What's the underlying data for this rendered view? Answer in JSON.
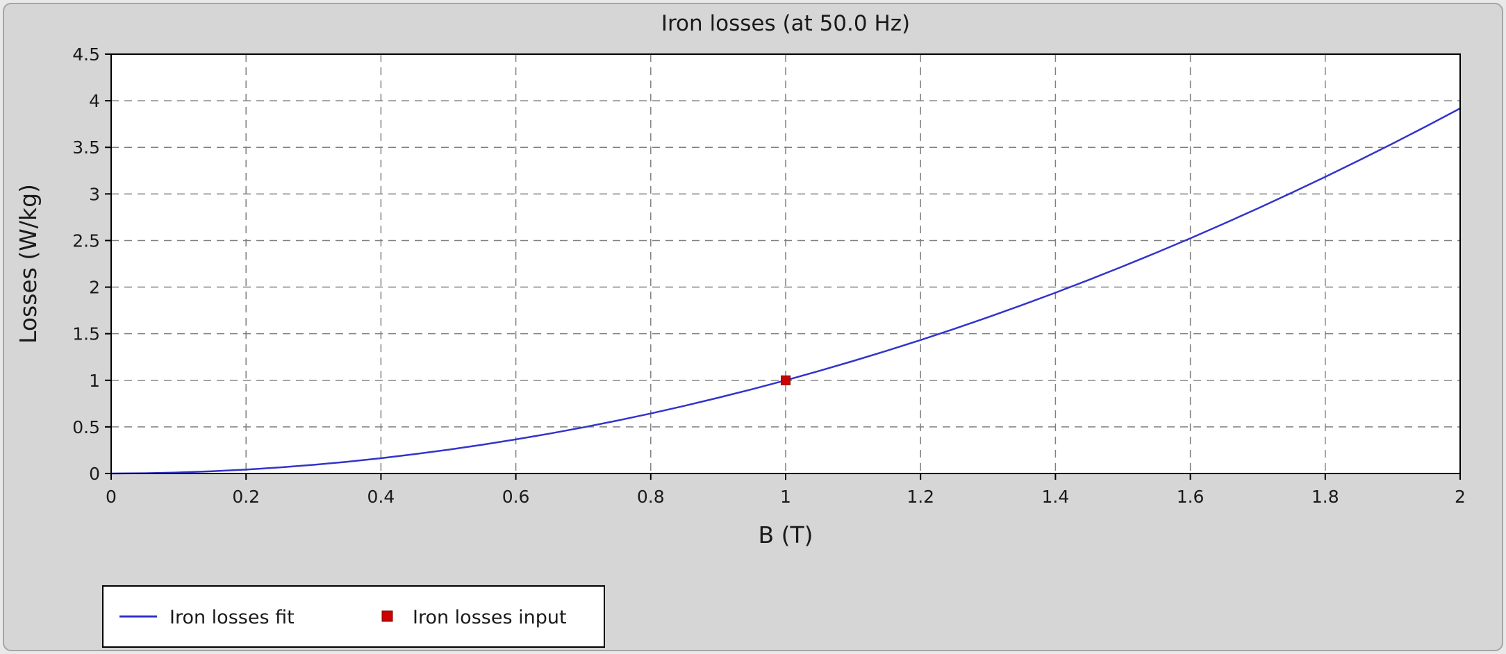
{
  "window": {
    "background_color": "#d6d6d6"
  },
  "chart_data": {
    "type": "line",
    "title": "Iron losses (at 50.0 Hz)",
    "xlabel": "B (T)",
    "ylabel": "Losses (W/kg)",
    "xlim": [
      0,
      2
    ],
    "ylim": [
      0,
      4.5
    ],
    "x_ticks": [
      0,
      0.2,
      0.4,
      0.6,
      0.8,
      1,
      1.2,
      1.4,
      1.6,
      1.8,
      2
    ],
    "y_ticks": [
      0,
      0.5,
      1,
      1.5,
      2,
      2.5,
      3,
      3.5,
      4,
      4.5
    ],
    "grid": true,
    "grid_style": "dashed",
    "grid_color": "#808080",
    "legend_position": "bottom-left",
    "series": [
      {
        "name": "Iron losses fit",
        "type": "line",
        "color": "#3333cc",
        "x": [
          0,
          0.05,
          0.1,
          0.15,
          0.2,
          0.25,
          0.3,
          0.35,
          0.4,
          0.45,
          0.5,
          0.55,
          0.6,
          0.65,
          0.7,
          0.75,
          0.8,
          0.85,
          0.9,
          0.95,
          1,
          1.05,
          1.1,
          1.15,
          1.2,
          1.25,
          1.3,
          1.35,
          1.4,
          1.45,
          1.5,
          1.55,
          1.6,
          1.65,
          1.7,
          1.75,
          1.8,
          1.85,
          1.9,
          1.95,
          2
        ],
        "y": [
          0,
          0.003,
          0.011,
          0.024,
          0.042,
          0.065,
          0.093,
          0.126,
          0.164,
          0.208,
          0.255,
          0.308,
          0.366,
          0.428,
          0.495,
          0.567,
          0.644,
          0.726,
          0.813,
          0.904,
          1,
          1.101,
          1.207,
          1.317,
          1.432,
          1.552,
          1.677,
          1.806,
          1.94,
          2.079,
          2.223,
          2.371,
          2.524,
          2.682,
          2.844,
          3.012,
          3.183,
          3.36,
          3.541,
          3.727,
          3.918
        ]
      },
      {
        "name": "Iron losses input",
        "type": "scatter",
        "marker": "square",
        "color": "#cc0000",
        "x": [
          1
        ],
        "y": [
          1
        ]
      }
    ]
  }
}
